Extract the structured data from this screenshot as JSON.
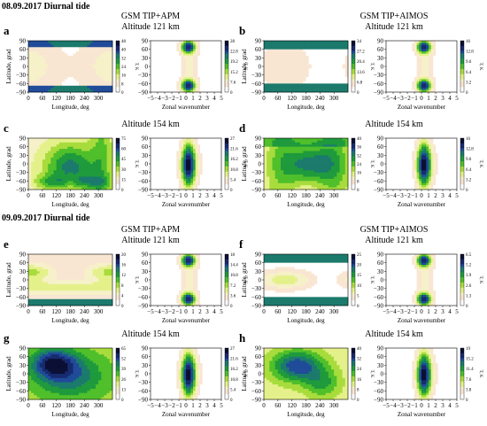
{
  "sections": [
    {
      "heading": "08.09.2017 Diurnal tide"
    },
    {
      "heading": "09.09.2017 Diurnal tide"
    }
  ],
  "column_titles": {
    "apm": "GSM TIP+APM",
    "aimos": "GSM TIP+AIMOS"
  },
  "row_titles": {
    "alt121": "Altitude 121 km",
    "alt154": "Altitude 154 km"
  },
  "colors": {
    "scale": [
      "#ffffff",
      "#f9e6d2",
      "#f6f1c8",
      "#e4f18a",
      "#a8dc3c",
      "#4fbf2a",
      "#1e9a3c",
      "#1b7a6c",
      "#1f4b99",
      "#172a70",
      "#0a0f33"
    ]
  },
  "chart_data": [
    {
      "panel": "a",
      "type": "heatmap",
      "section": 0,
      "column": "apm",
      "row": "alt121",
      "map": {
        "xlabel": "Longitude, deg",
        "ylabel": "Latitude, grad",
        "xticks": [
          "0",
          "60",
          "120",
          "180",
          "240",
          "300"
        ],
        "yticks": [
          "90",
          "60",
          "30",
          "0",
          "−30",
          "−60",
          "−90"
        ],
        "colorbar_label": "T, K",
        "colorbar_ticks": [
          "48",
          "40",
          "32",
          "24",
          "16",
          "8",
          "0"
        ]
      },
      "spectrum": {
        "xlabel": "Zonal wavenumber",
        "xticks": [
          "−5",
          "−4",
          "−3",
          "−2",
          "−1",
          "0",
          "1",
          "2",
          "3",
          "4",
          "5"
        ],
        "yticks": [
          "90",
          "60",
          "30",
          "0",
          "−30",
          "−60",
          "−90"
        ],
        "colorbar_label": "T, K",
        "colorbar_ticks": [
          "28",
          "22.8",
          "19.2",
          "15.2",
          "7.6",
          "0"
        ]
      }
    },
    {
      "panel": "b",
      "type": "heatmap",
      "section": 0,
      "column": "aimos",
      "row": "alt121",
      "map": {
        "xlabel": "Longitude, deg",
        "ylabel": "Latitude, grad",
        "xticks": [
          "0",
          "60",
          "120",
          "180",
          "240",
          "300"
        ],
        "yticks": [
          "90",
          "60",
          "30",
          "0",
          "−30",
          "−60",
          "−90"
        ],
        "colorbar_label": "T, K",
        "colorbar_ticks": [
          "34",
          "27.2",
          "20.4",
          "13.6",
          "6.8",
          "0"
        ]
      },
      "spectrum": {
        "xlabel": "Zonal wavenumber",
        "xticks": [
          "−5",
          "−4",
          "−3",
          "−2",
          "−1",
          "0",
          "1",
          "2",
          "3",
          "4",
          "5"
        ],
        "yticks": [
          "90",
          "60",
          "30",
          "0",
          "−30",
          "−60",
          "−90"
        ],
        "colorbar_label": "T, K",
        "colorbar_ticks": [
          "16",
          "12.8",
          "9.6",
          "6.4",
          "3.2",
          "0"
        ]
      }
    },
    {
      "panel": "c",
      "type": "heatmap",
      "section": 0,
      "column": "apm",
      "row": "alt154",
      "map": {
        "xlabel": "Longitude, deg",
        "ylabel": "Latitude, grad",
        "xticks": [
          "0",
          "60",
          "120",
          "180",
          "240",
          "300"
        ],
        "yticks": [
          "90",
          "60",
          "30",
          "0",
          "−30",
          "−60",
          "−90"
        ],
        "colorbar_label": "T, K",
        "colorbar_ticks": [
          "75",
          "60",
          "45",
          "30",
          "15",
          "0"
        ]
      },
      "spectrum": {
        "xlabel": "Zonal wavenumber",
        "xticks": [
          "−5",
          "−4",
          "−3",
          "−2",
          "−1",
          "0",
          "1",
          "2",
          "3",
          "4",
          "5"
        ],
        "yticks": [
          "90",
          "60",
          "30",
          "0",
          "−30",
          "−60",
          "−90"
        ],
        "colorbar_label": "T, K",
        "colorbar_ticks": [
          "27",
          "21.6",
          "16.2",
          "10.8",
          "5.4",
          "0"
        ]
      }
    },
    {
      "panel": "d",
      "type": "heatmap",
      "section": 0,
      "column": "aimos",
      "row": "alt154",
      "map": {
        "xlabel": "Longitude, deg",
        "ylabel": "Latitude, grad",
        "xticks": [
          "0",
          "60",
          "120",
          "180",
          "240",
          "300"
        ],
        "yticks": [
          "90",
          "60",
          "30",
          "0",
          "−30",
          "−60",
          "−90"
        ],
        "colorbar_label": "T, K",
        "colorbar_ticks": [
          "40",
          "36",
          "32",
          "24",
          "16",
          "8",
          "0"
        ]
      },
      "spectrum": {
        "xlabel": "Zonal wavenumber",
        "xticks": [
          "−5",
          "−4",
          "−3",
          "−2",
          "−1",
          "0",
          "1",
          "2",
          "3",
          "4",
          "5"
        ],
        "yticks": [
          "90",
          "60",
          "30",
          "0",
          "−30",
          "−60",
          "−90"
        ],
        "colorbar_label": "T, K",
        "colorbar_ticks": [
          "16",
          "12.8",
          "9.6",
          "6.4",
          "3.2",
          "0"
        ]
      }
    },
    {
      "panel": "e",
      "type": "heatmap",
      "section": 1,
      "column": "apm",
      "row": "alt121",
      "map": {
        "xlabel": "Longitude, deg",
        "ylabel": "Latitude, grad",
        "xticks": [
          "0",
          "60",
          "120",
          "180",
          "240",
          "300"
        ],
        "yticks": [
          "90",
          "60",
          "30",
          "0",
          "−30",
          "−60",
          "−90"
        ],
        "colorbar_label": "T, K",
        "colorbar_ticks": [
          "20",
          "16",
          "12",
          "8",
          "4",
          "0"
        ]
      },
      "spectrum": {
        "xlabel": "Zonal wavenumber",
        "xticks": [
          "−5",
          "−4",
          "−3",
          "−2",
          "−1",
          "0",
          "1",
          "2",
          "3",
          "4",
          "5"
        ],
        "yticks": [
          "90",
          "60",
          "30",
          "0",
          "−30",
          "−60",
          "−90"
        ],
        "colorbar_label": "T, K",
        "colorbar_ticks": [
          "18",
          "14.4",
          "10.8",
          "7.2",
          "3.6",
          "0"
        ]
      }
    },
    {
      "panel": "f",
      "type": "heatmap",
      "section": 1,
      "column": "aimos",
      "row": "alt121",
      "map": {
        "xlabel": "Longitude, deg",
        "ylabel": "Latitude, grad",
        "xticks": [
          "0",
          "60",
          "120",
          "180",
          "240",
          "300"
        ],
        "yticks": [
          "90",
          "60",
          "30",
          "0",
          "−30",
          "−60",
          "−90"
        ],
        "colorbar_label": "T, K",
        "colorbar_ticks": [
          "25",
          "20",
          "15",
          "10",
          "5",
          "0"
        ]
      },
      "spectrum": {
        "xlabel": "Zonal wavenumber",
        "xticks": [
          "−5",
          "−4",
          "−3",
          "−2",
          "−1",
          "0",
          "1",
          "2",
          "3",
          "4",
          "5"
        ],
        "yticks": [
          "90",
          "60",
          "30",
          "0",
          "−30",
          "−60",
          "−90"
        ],
        "colorbar_label": "T, K",
        "colorbar_ticks": [
          "6.5",
          "5.2",
          "3.9",
          "2.6",
          "1.3",
          "0"
        ]
      }
    },
    {
      "panel": "g",
      "type": "heatmap",
      "section": 1,
      "column": "apm",
      "row": "alt154",
      "map": {
        "xlabel": "Longitude, deg",
        "ylabel": "Latitude, grad",
        "xticks": [
          "0",
          "60",
          "120",
          "180",
          "240",
          "300"
        ],
        "yticks": [
          "90",
          "60",
          "30",
          "0",
          "−30",
          "−60",
          "−90"
        ],
        "colorbar_label": "T, K",
        "colorbar_ticks": [
          "65",
          "52",
          "39",
          "26",
          "13",
          "0"
        ]
      },
      "spectrum": {
        "xlabel": "Zonal wavenumber",
        "xticks": [
          "−5",
          "−4",
          "−3",
          "−2",
          "−1",
          "0",
          "1",
          "2",
          "3",
          "4",
          "5"
        ],
        "yticks": [
          "90",
          "60",
          "30",
          "0",
          "−30",
          "−60",
          "−90"
        ],
        "colorbar_label": "T, K",
        "colorbar_ticks": [
          "27",
          "21.6",
          "16.2",
          "10.8",
          "5.4",
          "0"
        ]
      }
    },
    {
      "panel": "h",
      "type": "heatmap",
      "section": 1,
      "column": "aimos",
      "row": "alt154",
      "map": {
        "xlabel": "Longitude, deg",
        "ylabel": "Latitude, grad",
        "xticks": [
          "0",
          "60",
          "120",
          "180",
          "240",
          "300"
        ],
        "yticks": [
          "90",
          "60",
          "30",
          "0",
          "−30",
          "−60",
          "−90"
        ],
        "colorbar_label": "T, K",
        "colorbar_ticks": [
          "40",
          "32",
          "24",
          "16",
          "8",
          "0"
        ]
      },
      "spectrum": {
        "xlabel": "Zonal wavenumber",
        "xticks": [
          "−5",
          "−4",
          "−3",
          "−2",
          "−1",
          "0",
          "1",
          "2",
          "3",
          "4",
          "5"
        ],
        "yticks": [
          "90",
          "60",
          "30",
          "0",
          "−30",
          "−60",
          "−90"
        ],
        "colorbar_label": "T, K",
        "colorbar_ticks": [
          "19",
          "15.2",
          "11.4",
          "7.6",
          "3.8",
          "0"
        ]
      }
    }
  ]
}
